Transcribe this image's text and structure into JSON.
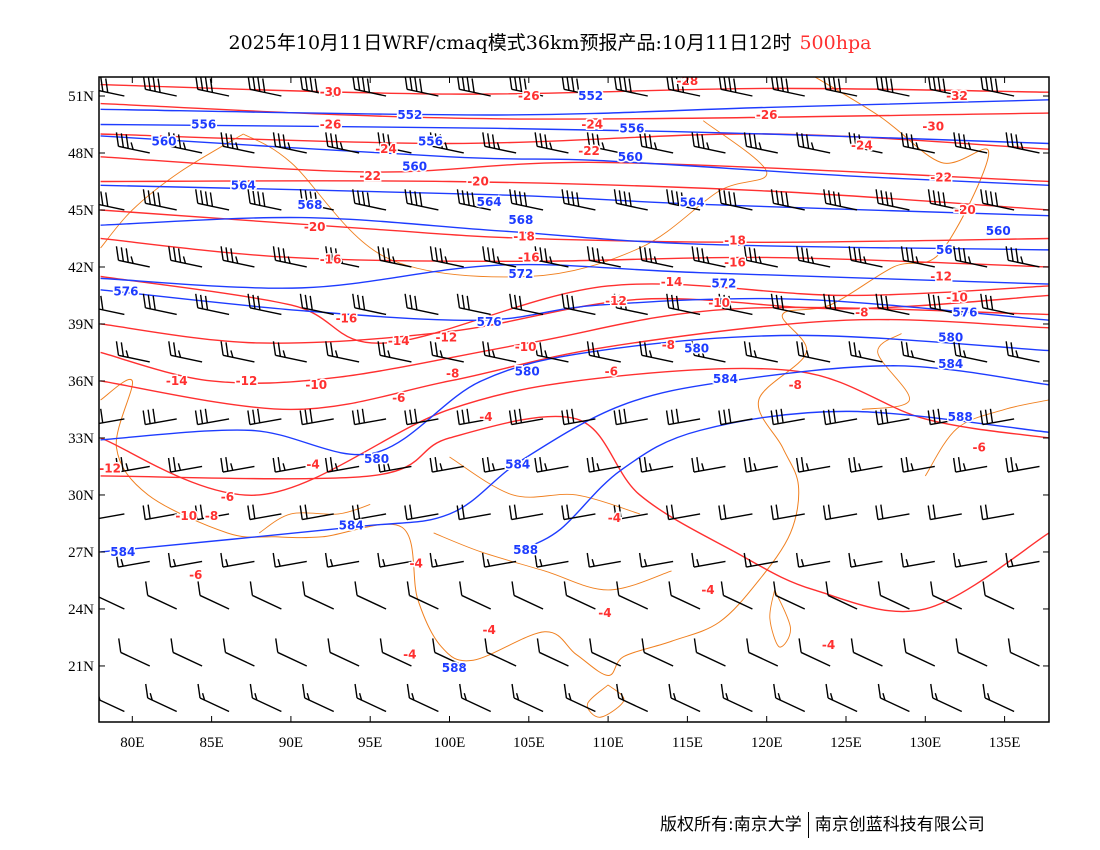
{
  "title": {
    "text": "2025年10月11日WRF/cmaq模式36km预报产品:10月11日12时",
    "level": "500hpa"
  },
  "footer": {
    "owner": "版权所有:南京大学",
    "company": "南京创蓝科技有限公司"
  },
  "colors": {
    "height": "#1e3cff",
    "temp": "#ff3030",
    "border": "#f08020",
    "wind": "#000000",
    "level": "#ff3030"
  },
  "map": {
    "lon_range": [
      77.9,
      137.8
    ],
    "lat_range": [
      18.05,
      52.0
    ],
    "lon_ticks": [
      {
        "v": 80,
        "label": "80E"
      },
      {
        "v": 85,
        "label": "85E"
      },
      {
        "v": 90,
        "label": "90E"
      },
      {
        "v": 95,
        "label": "95E"
      },
      {
        "v": 100,
        "label": "100E"
      },
      {
        "v": 105,
        "label": "105E"
      },
      {
        "v": 110,
        "label": "110E"
      },
      {
        "v": 115,
        "label": "115E"
      },
      {
        "v": 120,
        "label": "120E"
      },
      {
        "v": 125,
        "label": "125E"
      },
      {
        "v": 130,
        "label": "130E"
      },
      {
        "v": 135,
        "label": "135E"
      }
    ],
    "lat_ticks": [
      {
        "v": 51,
        "label": "51N"
      },
      {
        "v": 48,
        "label": "48N"
      },
      {
        "v": 45,
        "label": "45N"
      },
      {
        "v": 42,
        "label": "42N"
      },
      {
        "v": 39,
        "label": "39N"
      },
      {
        "v": 36,
        "label": "36N"
      },
      {
        "v": 33,
        "label": "33N"
      },
      {
        "v": 30,
        "label": "30N"
      },
      {
        "v": 27,
        "label": "27N"
      },
      {
        "v": 24,
        "label": "24N"
      },
      {
        "v": 21,
        "label": "21N"
      }
    ]
  },
  "height_contours": [
    {
      "value": "552",
      "pts": [
        [
          78,
          50.3
        ],
        [
          103,
          50
        ],
        [
          120,
          50.4
        ],
        [
          137.8,
          50.8
        ]
      ]
    },
    {
      "value": "556",
      "pts": [
        [
          78,
          49.5
        ],
        [
          103,
          49.3
        ],
        [
          120,
          49
        ],
        [
          137.8,
          48.5
        ]
      ]
    },
    {
      "value": "560",
      "pts": [
        [
          78,
          48.9
        ],
        [
          100,
          47.8
        ],
        [
          109.5,
          47.6
        ],
        [
          125,
          46.8
        ],
        [
          137.8,
          46.3
        ]
      ]
    },
    {
      "value": "564",
      "pts": [
        [
          78,
          46.3
        ],
        [
          103,
          45.8
        ],
        [
          115.8,
          45.3
        ],
        [
          137.8,
          44.7
        ]
      ]
    },
    {
      "value": "568",
      "pts": [
        [
          78,
          44.2
        ],
        [
          90.7,
          44.6
        ],
        [
          103.2,
          43.9
        ],
        [
          115.8,
          43.2
        ],
        [
          137.8,
          42.9
        ]
      ]
    },
    {
      "value": "572",
      "pts": [
        [
          78,
          41.4
        ],
        [
          90.7,
          40.9
        ],
        [
          103.2,
          42.1
        ],
        [
          115.8,
          41.7
        ],
        [
          137.8,
          41.1
        ]
      ]
    },
    {
      "value": "576",
      "pts": [
        [
          78,
          40.8
        ],
        [
          90.7,
          39.7
        ],
        [
          102,
          39.2
        ],
        [
          109.5,
          40
        ],
        [
          122.1,
          40.3
        ],
        [
          137.8,
          39.2
        ]
      ]
    },
    {
      "value": "580",
      "pts": [
        [
          78,
          32.9
        ],
        [
          87.5,
          33.4
        ],
        [
          95.2,
          32.2
        ],
        [
          102,
          36
        ],
        [
          109.5,
          37.6
        ],
        [
          122.1,
          38.4
        ],
        [
          137.8,
          37.6
        ]
      ]
    },
    {
      "value": "584",
      "pts": [
        [
          78,
          27
        ],
        [
          93.8,
          28.3
        ],
        [
          100,
          29
        ],
        [
          104.5,
          31.8
        ],
        [
          110.8,
          34.7
        ],
        [
          117.7,
          36
        ],
        [
          128.3,
          36.8
        ],
        [
          137.8,
          35.8
        ]
      ]
    },
    {
      "value": "588",
      "pts": [
        [
          104.5,
          27.1
        ],
        [
          107,
          28.2
        ],
        [
          110.8,
          31.3
        ],
        [
          115.8,
          33.4
        ],
        [
          125.2,
          34.4
        ],
        [
          137.8,
          33.3
        ]
      ]
    }
  ],
  "temp_contours": [
    {
      "value": "-30",
      "pts": [
        [
          78,
          51.6
        ],
        [
          100,
          51.1
        ],
        [
          120,
          51.4
        ],
        [
          137.8,
          51.2
        ]
      ]
    },
    {
      "value": "-26",
      "pts": [
        [
          78,
          50.6
        ],
        [
          103,
          49.8
        ],
        [
          137.8,
          50.1
        ]
      ]
    },
    {
      "value": "-24",
      "pts": [
        [
          78,
          49
        ],
        [
          100,
          48.5
        ],
        [
          120,
          49
        ],
        [
          137.8,
          48.2
        ]
      ]
    },
    {
      "value": "-22",
      "pts": [
        [
          78,
          47.8
        ],
        [
          95,
          47
        ],
        [
          110,
          47.5
        ],
        [
          137.8,
          46.5
        ]
      ]
    },
    {
      "value": "-20",
      "pts": [
        [
          78,
          46.5
        ],
        [
          100,
          46.5
        ],
        [
          120,
          46
        ],
        [
          137.8,
          45
        ]
      ]
    },
    {
      "value": "-18",
      "pts": [
        [
          78,
          45
        ],
        [
          95,
          44
        ],
        [
          105,
          43.5
        ],
        [
          120,
          43.3
        ],
        [
          137.8,
          43.5
        ]
      ]
    },
    {
      "value": "-16",
      "pts": [
        [
          78,
          43.5
        ],
        [
          90,
          42.5
        ],
        [
          105,
          42.3
        ],
        [
          120,
          42.5
        ],
        [
          137.8,
          42
        ]
      ]
    },
    {
      "value": "-14",
      "pts": [
        [
          78,
          41.5
        ],
        [
          90,
          40
        ],
        [
          96,
          38
        ],
        [
          110,
          41
        ],
        [
          125,
          40.5
        ],
        [
          137.8,
          41
        ]
      ]
    },
    {
      "value": "-12",
      "pts": [
        [
          78,
          39
        ],
        [
          88,
          38
        ],
        [
          100,
          38.6
        ],
        [
          112,
          40.3
        ],
        [
          125,
          39.8
        ],
        [
          137.8,
          40.5
        ]
      ]
    },
    {
      "value": "-10",
      "pts": [
        [
          78,
          37.5
        ],
        [
          85,
          36
        ],
        [
          93,
          36.2
        ],
        [
          105,
          38
        ],
        [
          118,
          39.8
        ],
        [
          137.8,
          39.5
        ]
      ]
    },
    {
      "value": "-8",
      "pts": [
        [
          78,
          36
        ],
        [
          90,
          34.5
        ],
        [
          100,
          36
        ],
        [
          110,
          37.8
        ],
        [
          125,
          39.2
        ],
        [
          137.8,
          38.8
        ]
      ]
    },
    {
      "value": "-6",
      "pts": [
        [
          78,
          33
        ],
        [
          88,
          30
        ],
        [
          100,
          34.5
        ],
        [
          110,
          36.2
        ],
        [
          122,
          36.5
        ],
        [
          130,
          34
        ],
        [
          137.8,
          33
        ]
      ]
    },
    {
      "value": "-4",
      "pts": [
        [
          78,
          31
        ],
        [
          95,
          31
        ],
        [
          100,
          33
        ],
        [
          108,
          34
        ],
        [
          112,
          30
        ],
        [
          118,
          27
        ],
        [
          123,
          25
        ],
        [
          130,
          24
        ],
        [
          137.8,
          28
        ]
      ]
    }
  ],
  "contour_labels": [
    {
      "t": "-30",
      "lon": 92.5,
      "lat": 51.2,
      "c": "temp"
    },
    {
      "t": "-28",
      "lon": 115,
      "lat": 51.8,
      "c": "temp"
    },
    {
      "t": "-26",
      "lon": 105,
      "lat": 51,
      "c": "temp"
    },
    {
      "t": "-26",
      "lon": 92.5,
      "lat": 49.5,
      "c": "temp"
    },
    {
      "t": "-24",
      "lon": 109,
      "lat": 49.5,
      "c": "temp"
    },
    {
      "t": "-26",
      "lon": 120,
      "lat": 50,
      "c": "temp"
    },
    {
      "t": "-32",
      "lon": 132,
      "lat": 51,
      "c": "temp"
    },
    {
      "t": "-30",
      "lon": 130.5,
      "lat": 49.4,
      "c": "temp"
    },
    {
      "t": "-24",
      "lon": 96,
      "lat": 48.2,
      "c": "temp"
    },
    {
      "t": "-22",
      "lon": 108.8,
      "lat": 48.1,
      "c": "temp"
    },
    {
      "t": "-22",
      "lon": 95,
      "lat": 46.8,
      "c": "temp"
    },
    {
      "t": "-20",
      "lon": 101.8,
      "lat": 46.5,
      "c": "temp"
    },
    {
      "t": "-24",
      "lon": 126,
      "lat": 48.4,
      "c": "temp"
    },
    {
      "t": "-22",
      "lon": 131,
      "lat": 46.7,
      "c": "temp"
    },
    {
      "t": "-20",
      "lon": 132.5,
      "lat": 45,
      "c": "temp"
    },
    {
      "t": "-20",
      "lon": 91.5,
      "lat": 44.1,
      "c": "temp"
    },
    {
      "t": "-18",
      "lon": 104.7,
      "lat": 43.6,
      "c": "temp"
    },
    {
      "t": "-18",
      "lon": 118,
      "lat": 43.4,
      "c": "temp"
    },
    {
      "t": "-16",
      "lon": 92.5,
      "lat": 42.4,
      "c": "temp"
    },
    {
      "t": "-16",
      "lon": 105,
      "lat": 42.5,
      "c": "temp"
    },
    {
      "t": "-16",
      "lon": 118,
      "lat": 42.7,
      "c": "temp"
    },
    {
      "t": "-14",
      "lon": 114,
      "lat": 41.2,
      "c": "temp"
    },
    {
      "t": "-12",
      "lon": 110.5,
      "lat": 40.2,
      "c": "temp"
    },
    {
      "t": "-10",
      "lon": 117,
      "lat": 40.1,
      "c": "temp"
    },
    {
      "t": "-12",
      "lon": 131,
      "lat": 41.5,
      "c": "temp"
    },
    {
      "t": "-10",
      "lon": 132,
      "lat": 40.4,
      "c": "temp"
    },
    {
      "t": "-8",
      "lon": 126,
      "lat": 39.6,
      "c": "temp"
    },
    {
      "t": "-16",
      "lon": 93.5,
      "lat": 39.3,
      "c": "temp"
    },
    {
      "t": "-14",
      "lon": 96.8,
      "lat": 38.1,
      "c": "temp"
    },
    {
      "t": "-12",
      "lon": 99.8,
      "lat": 38.3,
      "c": "temp"
    },
    {
      "t": "-10",
      "lon": 104.8,
      "lat": 37.8,
      "c": "temp"
    },
    {
      "t": "-8",
      "lon": 113.8,
      "lat": 37.9,
      "c": "temp"
    },
    {
      "t": "-14",
      "lon": 82.8,
      "lat": 36,
      "c": "temp"
    },
    {
      "t": "-12",
      "lon": 87.2,
      "lat": 36,
      "c": "temp"
    },
    {
      "t": "-10",
      "lon": 91.6,
      "lat": 35.8,
      "c": "temp"
    },
    {
      "t": "-8",
      "lon": 100.2,
      "lat": 36.4,
      "c": "temp"
    },
    {
      "t": "-6",
      "lon": 96.8,
      "lat": 35.1,
      "c": "temp"
    },
    {
      "t": "-6",
      "lon": 110.2,
      "lat": 36.5,
      "c": "temp"
    },
    {
      "t": "-8",
      "lon": 121.8,
      "lat": 35.8,
      "c": "temp"
    },
    {
      "t": "-4",
      "lon": 102.3,
      "lat": 34.1,
      "c": "temp"
    },
    {
      "t": "-6",
      "lon": 133.4,
      "lat": 32.5,
      "c": "temp"
    },
    {
      "t": "-4",
      "lon": 91.4,
      "lat": 31.6,
      "c": "temp"
    },
    {
      "t": "-6",
      "lon": 86,
      "lat": 29.9,
      "c": "temp"
    },
    {
      "t": "-12",
      "lon": 78.6,
      "lat": 31.4,
      "c": "temp"
    },
    {
      "t": "-10",
      "lon": 83.4,
      "lat": 28.9,
      "c": "temp"
    },
    {
      "t": "-8",
      "lon": 85,
      "lat": 28.9,
      "c": "temp"
    },
    {
      "t": "-4",
      "lon": 110.4,
      "lat": 28.8,
      "c": "temp"
    },
    {
      "t": "-6",
      "lon": 84,
      "lat": 25.8,
      "c": "temp"
    },
    {
      "t": "-4",
      "lon": 97.9,
      "lat": 26.4,
      "c": "temp"
    },
    {
      "t": "-4",
      "lon": 116.3,
      "lat": 25,
      "c": "temp"
    },
    {
      "t": "-4",
      "lon": 109.8,
      "lat": 23.8,
      "c": "temp"
    },
    {
      "t": "-4",
      "lon": 102.5,
      "lat": 22.9,
      "c": "temp"
    },
    {
      "t": "-4",
      "lon": 97.5,
      "lat": 21.6,
      "c": "temp"
    },
    {
      "t": "-4",
      "lon": 123.9,
      "lat": 22.1,
      "c": "temp"
    },
    {
      "t": "552",
      "lon": 108.9,
      "lat": 51,
      "c": "height"
    },
    {
      "t": "552",
      "lon": 97.5,
      "lat": 50,
      "c": "height"
    },
    {
      "t": "556",
      "lon": 84.5,
      "lat": 49.5,
      "c": "height"
    },
    {
      "t": "556",
      "lon": 98.8,
      "lat": 48.6,
      "c": "height"
    },
    {
      "t": "556",
      "lon": 111.5,
      "lat": 49.3,
      "c": "height"
    },
    {
      "t": "560",
      "lon": 82,
      "lat": 48.6,
      "c": "height"
    },
    {
      "t": "560",
      "lon": 97.8,
      "lat": 47.3,
      "c": "height"
    },
    {
      "t": "560",
      "lon": 111.4,
      "lat": 47.8,
      "c": "height"
    },
    {
      "t": "564",
      "lon": 87,
      "lat": 46.3,
      "c": "height"
    },
    {
      "t": "564",
      "lon": 102.5,
      "lat": 45.9,
      "c": "height"
    },
    {
      "t": "564",
      "lon": 115.3,
      "lat": 45.4,
      "c": "height"
    },
    {
      "t": "568",
      "lon": 91.2,
      "lat": 44.8,
      "c": "height"
    },
    {
      "t": "568",
      "lon": 104.5,
      "lat": 44,
      "c": "height"
    },
    {
      "t": "560",
      "lon": 134.6,
      "lat": 43.9,
      "c": "height"
    },
    {
      "t": "56",
      "lon": 131.2,
      "lat": 42.9,
      "c": "height"
    },
    {
      "t": "572",
      "lon": 104.5,
      "lat": 42.1,
      "c": "height"
    },
    {
      "t": "572",
      "lon": 117.3,
      "lat": 41.6,
      "c": "height"
    },
    {
      "t": "576",
      "lon": 79.6,
      "lat": 40.7,
      "c": "height"
    },
    {
      "t": "576",
      "lon": 102.5,
      "lat": 39.1,
      "c": "height"
    },
    {
      "t": "576",
      "lon": 132.5,
      "lat": 39.6,
      "c": "height"
    },
    {
      "t": "580",
      "lon": 114.7,
      "lat": 37.7,
      "c": "height"
    },
    {
      "t": "580",
      "lon": 131.6,
      "lat": 38.3,
      "c": "height"
    },
    {
      "t": "580",
      "lon": 104.9,
      "lat": 36.5,
      "c": "height"
    },
    {
      "t": "584",
      "lon": 117.4,
      "lat": 36.1,
      "c": "height"
    },
    {
      "t": "584",
      "lon": 131.6,
      "lat": 36.9,
      "c": "height"
    },
    {
      "t": "588",
      "lon": 132.2,
      "lat": 34.1,
      "c": "height"
    },
    {
      "t": "580",
      "lon": 95.4,
      "lat": 31.9,
      "c": "height"
    },
    {
      "t": "584",
      "lon": 104.3,
      "lat": 31.6,
      "c": "height"
    },
    {
      "t": "584",
      "lon": 93.8,
      "lat": 28.4,
      "c": "height"
    },
    {
      "t": "588",
      "lon": 104.8,
      "lat": 27.1,
      "c": "height"
    },
    {
      "t": "584",
      "lon": 79.4,
      "lat": 27,
      "c": "height"
    },
    {
      "t": "588",
      "lon": 100.3,
      "lat": 20.9,
      "c": "height"
    }
  ],
  "wind_rows": [
    {
      "lat": 51,
      "speed": 40
    },
    {
      "lat": 48,
      "speed": 35
    },
    {
      "lat": 45,
      "speed": 40
    },
    {
      "lat": 42,
      "speed": 35
    },
    {
      "lat": 39.5,
      "speed": 30
    },
    {
      "lat": 37,
      "speed": 25
    },
    {
      "lat": 34,
      "speed": 30
    },
    {
      "lat": 31.5,
      "speed": 25
    },
    {
      "lat": 29,
      "speed": 20
    },
    {
      "lat": 26.5,
      "speed": 15
    },
    {
      "lat": 24,
      "speed": 10
    },
    {
      "lat": 21,
      "speed": 10
    },
    {
      "lat": 18.6,
      "speed": 15
    }
  ]
}
